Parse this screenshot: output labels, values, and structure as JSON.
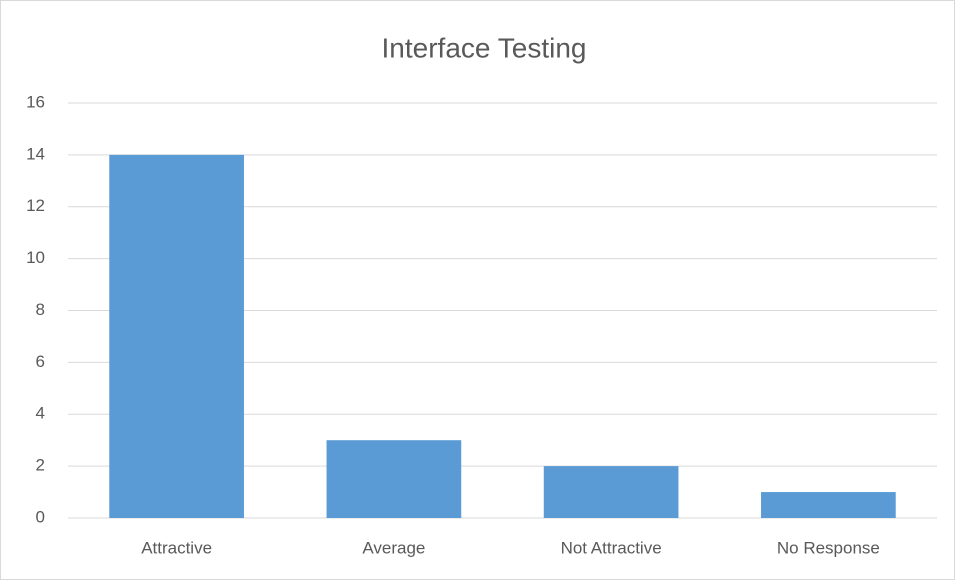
{
  "chart_data": {
    "type": "bar",
    "title": "Interface Testing",
    "categories": [
      "Attractive",
      "Average",
      "Not Attractive",
      "No Response"
    ],
    "values": [
      14,
      3,
      2,
      1
    ],
    "color": "#5b9bd5",
    "ylim": [
      0,
      16
    ],
    "yticks": [
      0,
      2,
      4,
      6,
      8,
      10,
      12,
      14,
      16
    ],
    "grid": true
  }
}
